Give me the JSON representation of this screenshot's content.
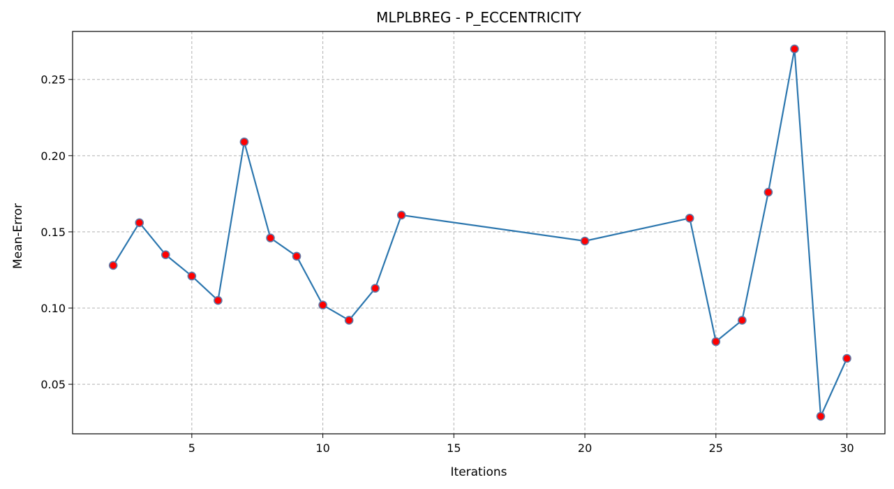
{
  "chart_data": {
    "type": "line",
    "title": "MLPLBREG - P_ECCENTRICITY",
    "xlabel": "Iterations",
    "ylabel": "Mean-Error",
    "xlim": [
      0.45,
      31.45
    ],
    "ylim": [
      0.0175,
      0.2815
    ],
    "xticks": [
      5,
      10,
      15,
      20,
      25,
      30
    ],
    "yticks": [
      0.05,
      0.1,
      0.15,
      0.2,
      0.25
    ],
    "xtick_labels": [
      "5",
      "10",
      "15",
      "20",
      "25",
      "30"
    ],
    "ytick_labels": [
      "0.05",
      "0.10",
      "0.15",
      "0.20",
      "0.25"
    ],
    "grid": true,
    "series": [
      {
        "x": [
          2,
          3,
          4,
          5,
          6,
          7,
          8,
          9,
          10,
          11,
          12,
          13,
          20,
          24,
          25,
          26,
          27,
          28,
          29,
          30
        ],
        "values": [
          0.128,
          0.156,
          0.135,
          0.121,
          0.105,
          0.209,
          0.146,
          0.134,
          0.102,
          0.092,
          0.113,
          0.161,
          0.144,
          0.159,
          0.078,
          0.092,
          0.176,
          0.27,
          0.029,
          0.067
        ],
        "line_color": "#2b76ae",
        "marker_color": "#ff0000",
        "marker_edge_color": "#5d79a8"
      }
    ]
  }
}
